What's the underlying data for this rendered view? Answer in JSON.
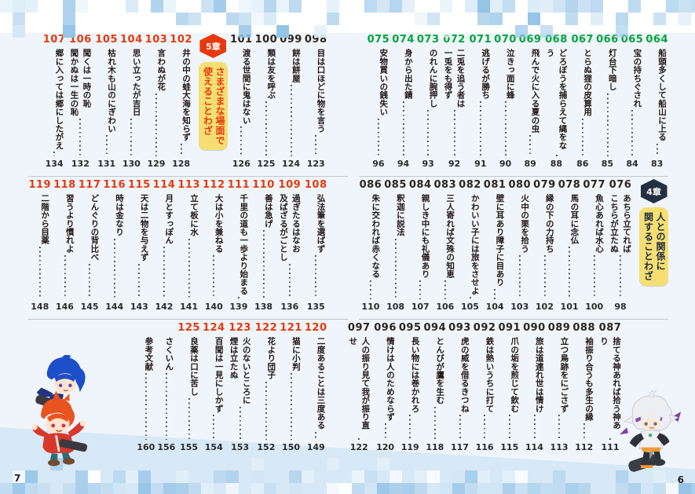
{
  "document": {
    "kind": "book-table-of-contents-spread",
    "language": "ja"
  },
  "colors": {
    "green": "#00a53c",
    "red": "#e8380d",
    "black": "#2b2620",
    "navy": "#232f42",
    "yellow": "#f5df72",
    "page_bg": "#eff5fb",
    "band": "#d7e8f6",
    "divider": "#bfc7ce",
    "dots": "#4a4a4a",
    "title_text": "#231815"
  },
  "pages": [
    {
      "side": "left",
      "folio": "7",
      "mascot": "chibi-duo-blue-and-orange-hair",
      "sections": [
        {
          "items": [
            {
              "num": "098",
              "color": "black",
              "lines": [
                "目は口ほどに物を言う"
              ],
              "page": "123"
            },
            {
              "num": "099",
              "color": "black",
              "lines": [
                "餅は餅屋"
              ],
              "page": "124"
            },
            {
              "num": "100",
              "color": "black",
              "lines": [
                "類は友を呼ぶ"
              ],
              "page": "125"
            },
            {
              "num": "101",
              "color": "black",
              "lines": [
                "渡る世間に鬼はない"
              ],
              "page": "126"
            },
            {
              "badge": true,
              "theme": "red",
              "chapter": "5章",
              "lines": [
                "さまざまな場面で",
                "使えることわざ"
              ]
            },
            {
              "num": "102",
              "color": "red",
              "lines": [
                "井の中の蛙大海を知らず"
              ],
              "page": "128"
            },
            {
              "num": "103",
              "color": "red",
              "lines": [
                "言わぬが花"
              ],
              "page": "129"
            },
            {
              "num": "104",
              "color": "red",
              "lines": [
                "思い立ったが吉日"
              ],
              "page": "130"
            },
            {
              "num": "105",
              "color": "red",
              "lines": [
                "枯れ木も山のにぎわい"
              ],
              "page": "131"
            },
            {
              "num": "106",
              "color": "red",
              "lines": [
                "聞くは一時の恥",
                "聞かぬは一生の恥"
              ],
              "page": "132"
            },
            {
              "num": "107",
              "color": "red",
              "lines": [
                "郷に入っては郷にしたがえ"
              ],
              "page": "134"
            }
          ]
        },
        {
          "items": [
            {
              "num": "108",
              "color": "red",
              "lines": [
                "弘法筆を選ばず"
              ],
              "page": "135"
            },
            {
              "num": "109",
              "color": "red",
              "lines": [
                "過ぎたるはなお",
                "及ばざるがごとし"
              ],
              "page": "136"
            },
            {
              "num": "110",
              "color": "red",
              "lines": [
                "善は急げ"
              ],
              "page": "138"
            },
            {
              "num": "111",
              "color": "red",
              "lines": [
                "千里の道も一歩より始まる"
              ],
              "page": "139"
            },
            {
              "num": "112",
              "color": "red",
              "lines": [
                "大は小を兼ねる"
              ],
              "page": "140"
            },
            {
              "num": "113",
              "color": "red",
              "lines": [
                "立て板に水"
              ],
              "page": "141"
            },
            {
              "num": "114",
              "color": "red",
              "lines": [
                "月とすっぽん"
              ],
              "page": "142"
            },
            {
              "num": "115",
              "color": "red",
              "lines": [
                "天は二物を与えず"
              ],
              "page": "143"
            },
            {
              "num": "116",
              "color": "red",
              "lines": [
                "時は金なり"
              ],
              "page": "144"
            },
            {
              "num": "117",
              "color": "red",
              "lines": [
                "どんぐりの背比べ"
              ],
              "page": "145"
            },
            {
              "num": "118",
              "color": "red",
              "lines": [
                "習うより慣れよ"
              ],
              "page": "146"
            },
            {
              "num": "119",
              "color": "red",
              "lines": [
                "二階から目薬"
              ],
              "page": "148"
            }
          ]
        },
        {
          "items": [
            {
              "num": "120",
              "color": "red",
              "lines": [
                "二度あることは三度ある"
              ],
              "page": "149"
            },
            {
              "num": "121",
              "color": "red",
              "lines": [
                "猫に小判"
              ],
              "page": "150"
            },
            {
              "num": "122",
              "color": "red",
              "lines": [
                "花より団子"
              ],
              "page": "152"
            },
            {
              "num": "123",
              "color": "red",
              "lines": [
                "火のないところに",
                "煙は立たぬ"
              ],
              "page": "153"
            },
            {
              "num": "124",
              "color": "red",
              "lines": [
                "百聞は一見にしかず"
              ],
              "page": "154"
            },
            {
              "num": "125",
              "color": "red",
              "lines": [
                "良薬は口に苦し"
              ],
              "page": "155"
            },
            {
              "num": "",
              "color": "black",
              "lines": [
                "さくいん"
              ],
              "page": "156"
            },
            {
              "num": "",
              "color": "black",
              "lines": [
                "参考文献"
              ],
              "page": "160"
            }
          ]
        }
      ]
    },
    {
      "side": "right",
      "folio": "6",
      "mascot": "chibi-silver-hair-hero",
      "sections": [
        {
          "items": [
            {
              "num": "064",
              "color": "green",
              "lines": [
                "船頭多くして船山に上る"
              ],
              "page": "83"
            },
            {
              "num": "065",
              "color": "green",
              "lines": [
                "宝の持ちぐされ"
              ],
              "page": "84"
            },
            {
              "num": "066",
              "color": "green",
              "lines": [
                "灯台下暗し"
              ],
              "page": "85"
            },
            {
              "num": "067",
              "color": "green",
              "lines": [
                "とらぬ狸の皮算用"
              ],
              "page": "86"
            },
            {
              "num": "068",
              "color": "green",
              "lines": [
                "どろぼうを捕らえて縄をなう"
              ],
              "page": "88"
            },
            {
              "num": "069",
              "color": "green",
              "lines": [
                "飛んで火に入る夏の虫"
              ],
              "page": "89"
            },
            {
              "num": "070",
              "color": "green",
              "lines": [
                "泣きっ面に蜂"
              ],
              "page": "90"
            },
            {
              "num": "071",
              "color": "green",
              "lines": [
                "逃げるが勝ち"
              ],
              "page": "91"
            },
            {
              "num": "072",
              "color": "green",
              "lines": [
                "二兎を追う者は",
                "一兎をも得ず"
              ],
              "page": "92"
            },
            {
              "num": "073",
              "color": "green",
              "lines": [
                "のれんに腕押し"
              ],
              "page": "93"
            },
            {
              "num": "074",
              "color": "green",
              "lines": [
                "身から出た錆"
              ],
              "page": "94"
            },
            {
              "num": "075",
              "color": "green",
              "lines": [
                "安物買いの銭失い"
              ],
              "page": "96"
            }
          ]
        },
        {
          "items": [
            {
              "badge": true,
              "theme": "navy",
              "chapter": "4章",
              "lines": [
                "人との関係に",
                "関することわざ"
              ]
            },
            {
              "num": "076",
              "color": "black",
              "lines": [
                "あちら立てれば",
                "こちらが立たぬ"
              ],
              "page": "98"
            },
            {
              "num": "077",
              "color": "black",
              "lines": [
                "魚心あれば水心"
              ],
              "page": "100"
            },
            {
              "num": "078",
              "color": "black",
              "lines": [
                "馬の耳に念仏"
              ],
              "page": "101"
            },
            {
              "num": "079",
              "color": "black",
              "lines": [
                "縁の下の力持ち"
              ],
              "page": "102"
            },
            {
              "num": "080",
              "color": "black",
              "lines": [
                "火中の栗を拾う"
              ],
              "page": "103"
            },
            {
              "num": "081",
              "color": "black",
              "lines": [
                "壁に耳あり障子に目あり"
              ],
              "page": "104"
            },
            {
              "num": "082",
              "color": "black",
              "lines": [
                "かわいい子には旅をさせよ"
              ],
              "page": "105"
            },
            {
              "num": "083",
              "color": "black",
              "lines": [
                "三人寄れば文殊の知恵"
              ],
              "page": "106"
            },
            {
              "num": "084",
              "color": "black",
              "lines": [
                "親しき中にも礼儀あり"
              ],
              "page": "107"
            },
            {
              "num": "085",
              "color": "black",
              "lines": [
                "釈迦に説法"
              ],
              "page": "108"
            },
            {
              "num": "086",
              "color": "black",
              "lines": [
                "朱に交われば赤くなる"
              ],
              "page": "110"
            }
          ]
        },
        {
          "mascot_side": "right",
          "items": [
            {
              "num": "087",
              "color": "black",
              "lines": [
                "捨てる神あれば拾う神あり"
              ],
              "page": "111"
            },
            {
              "num": "088",
              "color": "black",
              "lines": [
                "袖振り合うも多生の縁"
              ],
              "page": "112"
            },
            {
              "num": "089",
              "color": "black",
              "lines": [
                "立つ鳥跡をにごさず"
              ],
              "page": "113"
            },
            {
              "num": "090",
              "color": "black",
              "lines": [
                "旅は道連れ世は情け"
              ],
              "page": "114"
            },
            {
              "num": "091",
              "color": "black",
              "lines": [
                "爪の垢を煎じて飲む"
              ],
              "page": "115"
            },
            {
              "num": "092",
              "color": "black",
              "lines": [
                "鉄は熱いうちに打て"
              ],
              "page": "116"
            },
            {
              "num": "093",
              "color": "black",
              "lines": [
                "虎の威を借るきつね"
              ],
              "page": "117"
            },
            {
              "num": "094",
              "color": "black",
              "lines": [
                "とんびが鷹を生む"
              ],
              "page": "118"
            },
            {
              "num": "095",
              "color": "black",
              "lines": [
                "長い物には巻かれろ"
              ],
              "page": "119"
            },
            {
              "num": "096",
              "color": "black",
              "lines": [
                "情けは人のためならず"
              ],
              "page": "120"
            },
            {
              "num": "097",
              "color": "black",
              "lines": [
                "人の振り見て我が振り直せ"
              ],
              "page": "122"
            }
          ]
        }
      ]
    }
  ]
}
